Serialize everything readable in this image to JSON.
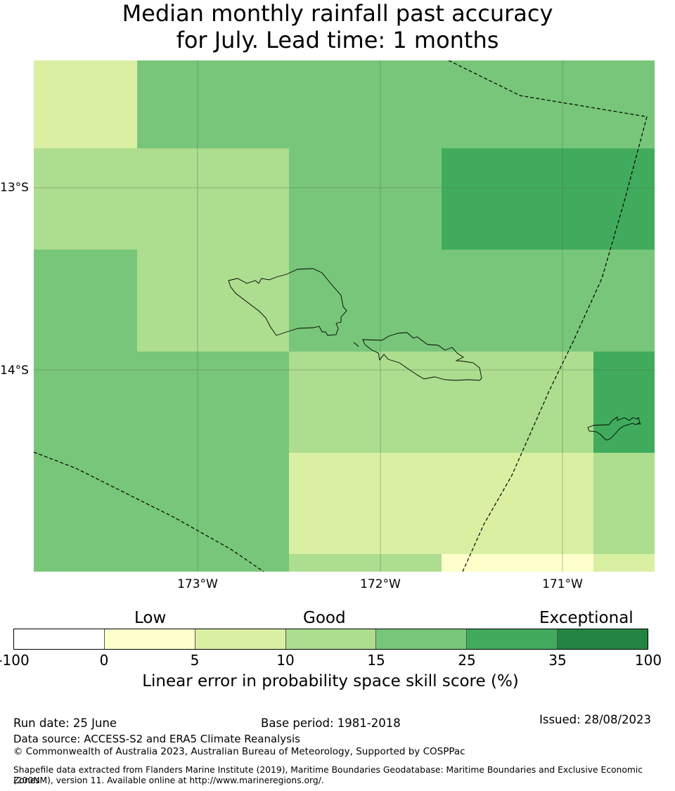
{
  "title_line1": "Median monthly rainfall past accuracy",
  "title_line2": "for July. Lead time: 1 months",
  "map": {
    "lat_labels": [
      "13°S",
      "14°S"
    ],
    "lon_labels": [
      "173°W",
      "172°W",
      "171°W"
    ],
    "palette": {
      "very_low": "#ffffcc",
      "low": "#d9f0a3",
      "good_low": "#addd8e",
      "good": "#78c679",
      "high": "#41ab5d",
      "exceptional": "#238443"
    },
    "grid_cells": [
      {
        "row": 0,
        "col": 0,
        "class": "low"
      },
      {
        "row": 0,
        "col": 1,
        "class": "good"
      },
      {
        "row": 1,
        "col": 0,
        "class": "good_low"
      },
      {
        "row": 1,
        "col": 1,
        "class": "good"
      },
      {
        "row": 1,
        "col": 2,
        "class": "high"
      },
      {
        "row": 2,
        "col": 0,
        "class": "good"
      },
      {
        "row": 2,
        "col": 1,
        "class": "good_low"
      },
      {
        "row": 2,
        "col": 2,
        "class": "good"
      },
      {
        "row": 3,
        "col": 0,
        "class": "good"
      },
      {
        "row": 3,
        "col": 1,
        "class": "good_low"
      },
      {
        "row": 3,
        "col": 2,
        "class": "high"
      },
      {
        "row": 4,
        "col": 0,
        "class": "good"
      },
      {
        "row": 4,
        "col": 1,
        "class": "low"
      },
      {
        "row": 4,
        "col": 2,
        "class": "good_low"
      },
      {
        "row": 5,
        "col": 0,
        "class": "good"
      },
      {
        "row": 5,
        "col": 1,
        "class": "good_low"
      },
      {
        "row": 5,
        "col": 2,
        "class": "very_low"
      },
      {
        "row": 5,
        "col": 3,
        "class": "low"
      }
    ]
  },
  "legend": {
    "categories": [
      "Low",
      "Good",
      "Exceptional"
    ],
    "segment_colors": [
      "#ffffff",
      "#ffffcc",
      "#d9f0a3",
      "#addd8e",
      "#78c679",
      "#41ab5d",
      "#238443"
    ],
    "ticks": [
      "-100",
      "0",
      "5",
      "10",
      "15",
      "25",
      "35",
      "100"
    ],
    "label": "Linear error in probability space skill score (%)"
  },
  "footer": {
    "run_date": "Run date: 25 June",
    "base_period": "Base period: 1981-2018",
    "issued": "Issued: 28/08/2023",
    "data_source": "Data source: ACCESS-S2 and ERA5 Climate Reanalysis",
    "copyright": "© Commonwealth of Australia 2023, Australian Bureau of Meteorology, Supported by COSPPac",
    "shapefile_1": "Shapefile data extracted from Flanders Marine Institute (2019), Maritime Boundaries Geodatabase: Maritime Boundaries and Exclusive Economic Zones",
    "shapefile_2": "(200NM), version 11. Available online at http://www.marineregions.org/."
  }
}
